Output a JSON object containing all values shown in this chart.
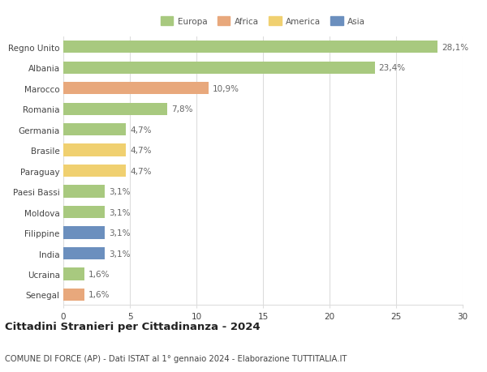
{
  "countries": [
    "Regno Unito",
    "Albania",
    "Marocco",
    "Romania",
    "Germania",
    "Brasile",
    "Paraguay",
    "Paesi Bassi",
    "Moldova",
    "Filippine",
    "India",
    "Ucraina",
    "Senegal"
  ],
  "values": [
    28.1,
    23.4,
    10.9,
    7.8,
    4.7,
    4.7,
    4.7,
    3.1,
    3.1,
    3.1,
    3.1,
    1.6,
    1.6
  ],
  "labels": [
    "28,1%",
    "23,4%",
    "10,9%",
    "7,8%",
    "4,7%",
    "4,7%",
    "4,7%",
    "3,1%",
    "3,1%",
    "3,1%",
    "3,1%",
    "1,6%",
    "1,6%"
  ],
  "colors": [
    "#a8c97f",
    "#a8c97f",
    "#e8a87c",
    "#a8c97f",
    "#a8c97f",
    "#f0d070",
    "#f0d070",
    "#a8c97f",
    "#a8c97f",
    "#6b8fbe",
    "#6b8fbe",
    "#a8c97f",
    "#e8a87c"
  ],
  "legend_labels": [
    "Europa",
    "Africa",
    "America",
    "Asia"
  ],
  "legend_colors": [
    "#a8c97f",
    "#e8a87c",
    "#f0d070",
    "#6b8fbe"
  ],
  "title": "Cittadini Stranieri per Cittadinanza - 2024",
  "subtitle": "COMUNE DI FORCE (AP) - Dati ISTAT al 1° gennaio 2024 - Elaborazione TUTTITALIA.IT",
  "xlim": [
    0,
    30
  ],
  "xticks": [
    0,
    5,
    10,
    15,
    20,
    25,
    30
  ],
  "bg_color": "#ffffff",
  "grid_color": "#dddddd",
  "bar_height": 0.6,
  "label_fontsize": 7.5,
  "tick_fontsize": 7.5,
  "title_fontsize": 9.5,
  "subtitle_fontsize": 7.2
}
